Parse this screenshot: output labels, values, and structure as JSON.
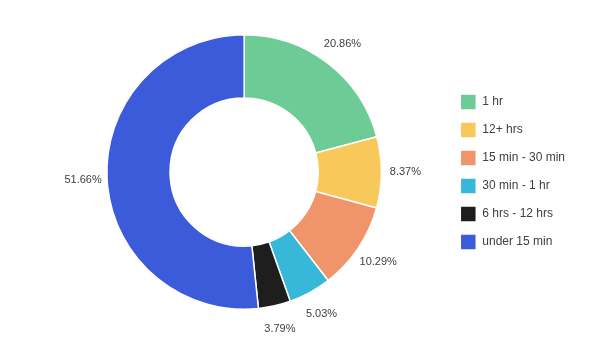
{
  "chart_data": {
    "type": "donut",
    "categories": [
      "1 hr",
      "12+ hrs",
      "15 min - 30 min",
      "30 min - 1 hr",
      "6 hrs - 12 hrs",
      "under 15 min"
    ],
    "values": [
      20.86,
      8.37,
      10.29,
      5.03,
      3.79,
      51.66
    ],
    "value_labels": [
      "20.86%",
      "8.37%",
      "10.29%",
      "5.03%",
      "3.79%",
      "51.66%"
    ],
    "colors": [
      "#6DCB96",
      "#F9C85A",
      "#F0956A",
      "#38B8D8",
      "#1E1E1E",
      "#3B5BDB"
    ],
    "data_labels": true,
    "legend": "right"
  }
}
